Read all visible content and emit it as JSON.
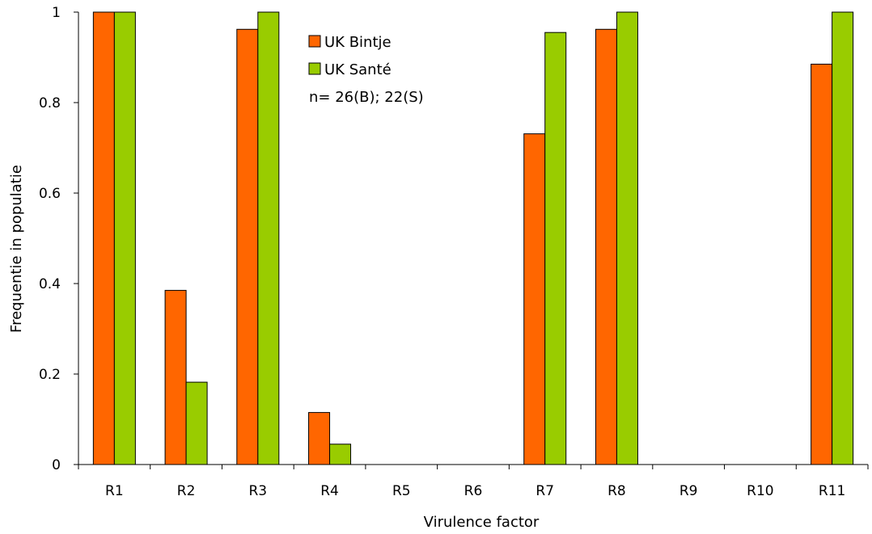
{
  "chart_data": {
    "type": "bar",
    "categories": [
      "R1",
      "R2",
      "R3",
      "R4",
      "R5",
      "R6",
      "R7",
      "R8",
      "R9",
      "R10",
      "R11"
    ],
    "series": [
      {
        "name": "UK Bintje",
        "color": "#ff6600",
        "values": [
          1,
          0.385,
          0.962,
          0.115,
          0,
          0,
          0.731,
          0.962,
          0,
          0,
          0.885
        ]
      },
      {
        "name": "UK Santé",
        "color": "#99cc00",
        "values": [
          1,
          0.182,
          1,
          0.045,
          0,
          0,
          0.955,
          1,
          0,
          0,
          1
        ]
      }
    ],
    "xlabel": "Virulence factor",
    "ylabel": "Frequentie in populatie",
    "ylim": [
      0,
      1
    ],
    "yticks": [
      "0",
      "0.2",
      "0.4",
      "0.6",
      "0.8",
      "1"
    ],
    "ytick_values": [
      0,
      0.2,
      0.4,
      0.6,
      0.8,
      1
    ],
    "annotation": "n= 26(B); 22(S)",
    "legend_position": "top-center",
    "grid": false
  }
}
